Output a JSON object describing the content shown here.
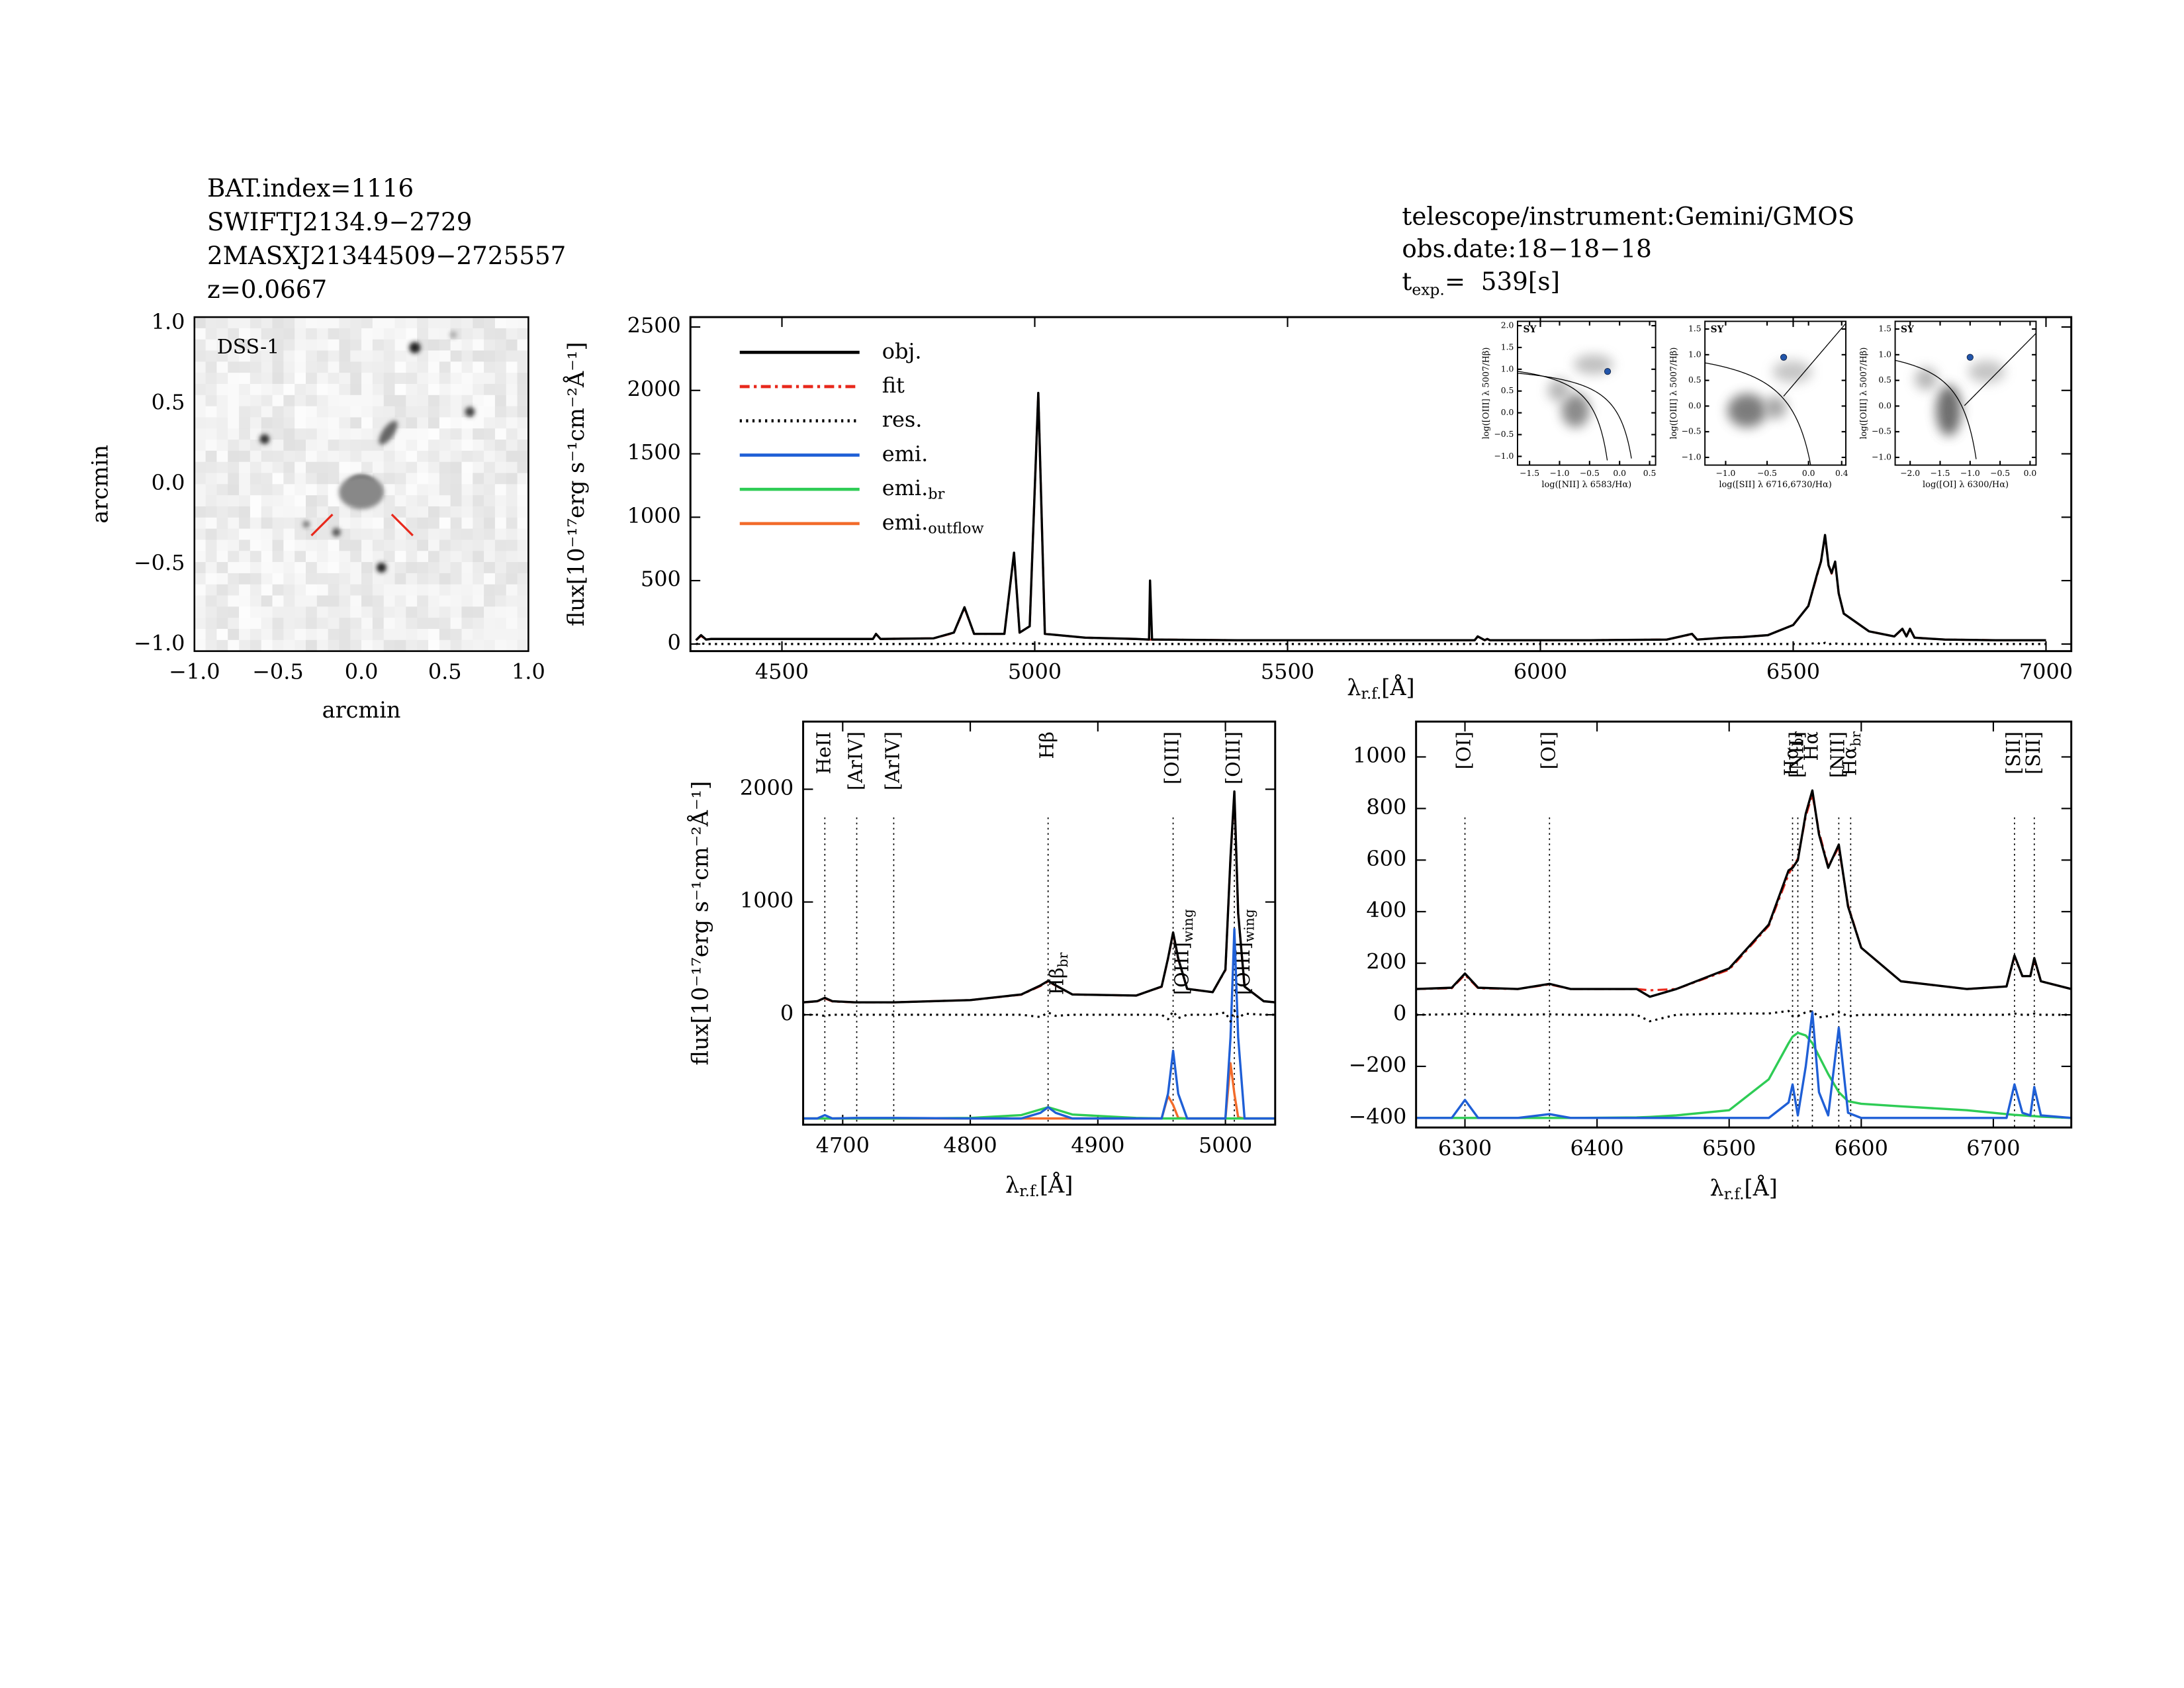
{
  "header": {
    "lines": [
      "BAT.index=1116",
      "SWIFTJ2134.9−2729",
      "2MASXJ21344509−2725557",
      "z=0.0667"
    ],
    "instrument": "telescope/instrument:Gemini/GMOS",
    "date": "obs.date:18−18−18",
    "texp": [
      "t",
      "exp.",
      "=  539[s]"
    ]
  },
  "chart_data": [
    {
      "type": "image",
      "label": "DSS-1",
      "xlabel": "arcmin",
      "ylabel": "arcmin",
      "xlim": [
        -1.0,
        1.0
      ],
      "ylim": [
        -1.04,
        1.04
      ],
      "xticks": [
        {
          "value": -1.0,
          "label": "−1.0"
        },
        {
          "value": -0.5,
          "label": "−0.5"
        },
        {
          "value": 0,
          "label": "0.0"
        },
        0.5,
        {
          "value": 1.0,
          "label": "1.0"
        }
      ],
      "yticks": [
        {
          "value": -1.0,
          "label": "−1.0"
        },
        {
          "value": -0.5,
          "label": "−0.5"
        },
        {
          "value": 0,
          "label": "0.0"
        },
        0.5,
        {
          "value": 1.0,
          "label": "1.0"
        }
      ]
    },
    {
      "type": "line",
      "xlabel": [
        "λ",
        "r.f.",
        "[Å]"
      ],
      "ylabel": "flux[10⁻¹⁷erg s⁻¹cm⁻²Å⁻¹]",
      "xlim": [
        4319,
        7050
      ],
      "ylim": [
        -56,
        2578
      ],
      "xticks": [
        4500,
        5000,
        5500,
        6000,
        6500,
        7000
      ],
      "yticks": [
        0,
        500,
        1000,
        1500,
        2000,
        2500
      ],
      "x": [
        4330,
        4340,
        4350,
        4360,
        4400,
        4500,
        4600,
        4680,
        4686,
        4695,
        4800,
        4840,
        4861,
        4880,
        4940,
        4959,
        4970,
        4990,
        5007,
        5020,
        5100,
        5200,
        5226,
        5228,
        5232,
        5240,
        5400,
        5600,
        5800,
        5870,
        5876,
        5890,
        5895,
        5900,
        6000,
        6100,
        6250,
        6300,
        6310,
        6364,
        6400,
        6450,
        6500,
        6530,
        6548,
        6555,
        6563,
        6570,
        6576,
        6583,
        6590,
        6600,
        6650,
        6700,
        6716,
        6724,
        6731,
        6740,
        6800,
        6900,
        7000
      ],
      "series": [
        {
          "name": "obj.",
          "color": "#000000",
          "dash": "solid",
          "values": [
            30,
            70,
            35,
            40,
            40,
            40,
            40,
            40,
            80,
            40,
            45,
            90,
            290,
            80,
            80,
            720,
            90,
            140,
            1980,
            80,
            50,
            40,
            35,
            500,
            35,
            35,
            30,
            30,
            30,
            30,
            60,
            30,
            40,
            30,
            30,
            30,
            35,
            80,
            35,
            50,
            55,
            70,
            150,
            300,
            560,
            650,
            860,
            620,
            560,
            650,
            400,
            240,
            100,
            60,
            120,
            60,
            120,
            50,
            35,
            30,
            30
          ]
        },
        {
          "name": "fit",
          "color": "#e8291c",
          "dash": "dashdot",
          "values": [
            30,
            65,
            35,
            40,
            40,
            40,
            40,
            40,
            78,
            40,
            45,
            88,
            285,
            80,
            80,
            715,
            90,
            140,
            1975,
            80,
            50,
            40,
            35,
            35,
            35,
            35,
            30,
            30,
            30,
            30,
            58,
            30,
            40,
            30,
            30,
            30,
            35,
            78,
            35,
            50,
            55,
            70,
            150,
            300,
            550,
            655,
            850,
            625,
            555,
            645,
            400,
            240,
            100,
            60,
            118,
            60,
            118,
            50,
            35,
            30,
            30
          ]
        },
        {
          "name": "res.",
          "color": "#000000",
          "dash": "dotted",
          "values": [
            0,
            5,
            0,
            0,
            0,
            0,
            0,
            0,
            2,
            0,
            0,
            2,
            5,
            0,
            0,
            5,
            0,
            0,
            5,
            0,
            0,
            0,
            0,
            0,
            0,
            0,
            0,
            0,
            0,
            0,
            2,
            0,
            0,
            0,
            0,
            0,
            0,
            2,
            0,
            0,
            0,
            0,
            0,
            0,
            10,
            -5,
            10,
            -5,
            5,
            5,
            0,
            0,
            0,
            0,
            2,
            0,
            2,
            0,
            0,
            0,
            0
          ]
        }
      ],
      "legend_extra": [
        {
          "name": "emi.",
          "color": "#1f5fd6",
          "dash": "solid"
        },
        {
          "name": "emi.",
          "sub": "br",
          "color": "#2ecc55",
          "dash": "solid"
        },
        {
          "name": "emi.",
          "sub": "outflow",
          "color": "#f26b2a",
          "dash": "solid"
        }
      ]
    },
    {
      "type": "line",
      "xlabel": [
        "λ",
        "r.f.",
        "[Å]"
      ],
      "ylabel": "flux[10⁻¹⁷erg s⁻¹cm⁻²Å⁻¹]",
      "xlim": [
        4669,
        5039
      ],
      "ylim": [
        -975,
        2600
      ],
      "xticks": [
        4700,
        4800,
        4900,
        5000
      ],
      "yticks": [
        0,
        1000,
        2000
      ],
      "x": [
        4669,
        4680,
        4686,
        4692,
        4710,
        4740,
        4800,
        4840,
        4855,
        4861,
        4867,
        4880,
        4930,
        4950,
        4955,
        4959,
        4963,
        4970,
        4990,
        5000,
        5004,
        5007,
        5010,
        5015,
        5030,
        5039
      ],
      "series": [
        {
          "color": "#000000",
          "dash": "solid",
          "values": [
            110,
            120,
            150,
            120,
            110,
            110,
            130,
            180,
            260,
            300,
            260,
            180,
            170,
            250,
            500,
            730,
            500,
            230,
            200,
            400,
            1400,
            1980,
            900,
            250,
            120,
            110
          ]
        },
        {
          "color": "#e8291c",
          "dash": "dashdot",
          "values": [
            110,
            118,
            145,
            118,
            110,
            110,
            130,
            178,
            255,
            295,
            258,
            180,
            170,
            248,
            495,
            720,
            495,
            230,
            200,
            395,
            1390,
            1960,
            895,
            250,
            120,
            110
          ]
        },
        {
          "color": "#000000",
          "dash": "dotted",
          "values": [
            0,
            0,
            -10,
            0,
            0,
            0,
            0,
            0,
            -20,
            20,
            -10,
            0,
            0,
            0,
            -40,
            30,
            -30,
            0,
            0,
            20,
            -60,
            40,
            -30,
            10,
            0,
            0
          ]
        },
        {
          "color": "#1f5fd6",
          "dash": "solid",
          "values": [
            -920,
            -920,
            -890,
            -920,
            -915,
            -915,
            -920,
            -920,
            -870,
            -820,
            -870,
            -920,
            -920,
            -920,
            -700,
            -320,
            -700,
            -920,
            -920,
            -920,
            -200,
            760,
            -200,
            -920,
            -920,
            -920
          ]
        },
        {
          "color": "#2ecc55",
          "dash": "solid",
          "values": [
            -920,
            -920,
            -920,
            -920,
            -920,
            -920,
            -915,
            -890,
            -840,
            -820,
            -840,
            -885,
            -915,
            -920,
            -920,
            -920,
            -920,
            -920,
            -920,
            -920,
            -920,
            -920,
            -920,
            -920,
            -920,
            -920
          ]
        },
        {
          "color": "#f26b2a",
          "dash": "solid",
          "values": [
            -920,
            -920,
            -920,
            -920,
            -920,
            -920,
            -920,
            -920,
            -920,
            -920,
            -920,
            -920,
            -920,
            -920,
            -720,
            -800,
            -915,
            -920,
            -920,
            -920,
            -430,
            -700,
            -910,
            -920,
            -920,
            -920
          ]
        }
      ],
      "lines": [
        {
          "x": 4686,
          "text": "HeII"
        },
        {
          "x": 4711,
          "text": "[ArIV]"
        },
        {
          "x": 4740,
          "text": "[ArIV]"
        },
        {
          "x": 4861,
          "text": "Hβ"
        },
        {
          "x": 4959,
          "text": "[OIII]"
        },
        {
          "x": 5007,
          "text": "[OIII]"
        }
      ],
      "low_labels": [
        {
          "x": 4861,
          "text": "Hβ",
          "sub": "br"
        },
        {
          "x": 4959,
          "text": "[OIII]",
          "sub": "wing"
        },
        {
          "x": 5007,
          "text": "[OIII]",
          "sub": "wing"
        }
      ]
    },
    {
      "type": "line",
      "xlabel": [
        "λ",
        "r.f.",
        "[Å]"
      ],
      "xlim": [
        6263,
        6759
      ],
      "ylim": [
        -437,
        1137
      ],
      "xticks": [
        6300,
        6400,
        6500,
        6600,
        6700
      ],
      "yticks": [
        {
          "value": -400,
          "label": "−400"
        },
        {
          "value": -200,
          "label": "−200"
        },
        0,
        200,
        400,
        600,
        800,
        1000
      ],
      "x": [
        6263,
        6290,
        6300,
        6310,
        6340,
        6364,
        6380,
        6430,
        6440,
        6460,
        6500,
        6530,
        6545,
        6548,
        6552,
        6558,
        6563,
        6568,
        6575,
        6583,
        6590,
        6600,
        6630,
        6680,
        6710,
        6716,
        6722,
        6728,
        6731,
        6736,
        6759
      ],
      "series": [
        {
          "color": "#000000",
          "dash": "solid",
          "values": [
            100,
            105,
            160,
            105,
            100,
            120,
            100,
            100,
            70,
            100,
            180,
            350,
            560,
            570,
            600,
            780,
            870,
            700,
            570,
            660,
            420,
            260,
            130,
            100,
            110,
            230,
            150,
            150,
            220,
            130,
            100
          ]
        },
        {
          "color": "#e8291c",
          "dash": "dashdot",
          "values": [
            100,
            103,
            155,
            103,
            100,
            118,
            100,
            100,
            95,
            100,
            175,
            345,
            545,
            575,
            605,
            770,
            855,
            710,
            575,
            650,
            425,
            260,
            130,
            100,
            110,
            225,
            150,
            150,
            215,
            130,
            100
          ]
        },
        {
          "color": "#000000",
          "dash": "dotted",
          "values": [
            0,
            2,
            5,
            2,
            0,
            2,
            0,
            0,
            -25,
            0,
            5,
            5,
            15,
            -5,
            -5,
            10,
            15,
            -10,
            -5,
            10,
            -5,
            0,
            0,
            0,
            0,
            5,
            0,
            0,
            5,
            0,
            0
          ]
        },
        {
          "color": "#1f5fd6",
          "dash": "solid",
          "values": [
            -400,
            -400,
            -330,
            -400,
            -400,
            -385,
            -400,
            -400,
            -400,
            -400,
            -400,
            -400,
            -340,
            -270,
            -390,
            -200,
            10,
            -300,
            -390,
            -50,
            -380,
            -400,
            -400,
            -400,
            -400,
            -270,
            -380,
            -390,
            -280,
            -390,
            -400
          ]
        },
        {
          "color": "#2ecc55",
          "dash": "solid",
          "values": [
            -400,
            -400,
            -400,
            -400,
            -400,
            -400,
            -400,
            -398,
            -396,
            -390,
            -370,
            -250,
            -110,
            -85,
            -70,
            -80,
            -110,
            -160,
            -230,
            -300,
            -335,
            -345,
            -355,
            -370,
            -385,
            -388,
            -390,
            -392,
            -393,
            -395,
            -400
          ]
        }
      ],
      "lines": [
        {
          "x": 6300,
          "text": "[OI]"
        },
        {
          "x": 6364,
          "text": "[OI]"
        },
        {
          "x": 6548,
          "text": "Hα",
          "sub": "br"
        },
        {
          "x": 6552,
          "text": "[NII]"
        },
        {
          "x": 6563,
          "text": "Hα"
        },
        {
          "x": 6583,
          "text": "[NII]"
        },
        {
          "x": 6592,
          "text": "Hα",
          "sub": "br"
        },
        {
          "x": 6716,
          "text": "[SII]"
        },
        {
          "x": 6731,
          "text": "[SII]"
        }
      ]
    },
    {
      "type": "scatter",
      "label": "SY",
      "xlabel": "log([NII] λ 6583/Hα)",
      "ylabel": "log([OIII] λ 5007/Hβ)",
      "xlim": [
        -1.7,
        0.6
      ],
      "ylim": [
        -1.2,
        2.1
      ],
      "xticks": [
        {
          "value": -1.5,
          "label": "−1.5"
        },
        {
          "value": -1.0,
          "label": "−1.0"
        },
        {
          "value": -0.5,
          "label": "−0.5"
        },
        {
          "value": 0,
          "label": "0.0"
        },
        0.5
      ],
      "yticks": [
        {
          "value": -1.0,
          "label": "−1.0"
        },
        {
          "value": -0.5,
          "label": "−0.5"
        },
        {
          "value": 0,
          "label": "0.0"
        },
        0.5,
        {
          "value": 1.0,
          "label": "1.0"
        },
        1.5,
        {
          "value": 2.0,
          "label": "2.0"
        }
      ],
      "x": [
        -0.2
      ],
      "values": [
        0.95
      ],
      "color": "#2255aa"
    },
    {
      "type": "scatter",
      "label": "SY",
      "xlabel": "log([SII] λ 6716,6730/Hα)",
      "ylabel": "log([OIII] λ 5007/Hβ)",
      "xlim": [
        -1.25,
        0.45
      ],
      "ylim": [
        -1.15,
        1.65
      ],
      "xticks": [
        {
          "value": -1.0,
          "label": "−1.0"
        },
        {
          "value": -0.5,
          "label": "−0.5"
        },
        {
          "value": 0,
          "label": "0.0"
        },
        0.4
      ],
      "yticks": [
        {
          "value": -1.0,
          "label": "−1.0"
        },
        {
          "value": -0.5,
          "label": "−0.5"
        },
        {
          "value": 0,
          "label": "0.0"
        },
        0.5,
        {
          "value": 1.0,
          "label": "1.0"
        },
        1.5
      ],
      "x": [
        -0.3
      ],
      "values": [
        0.95
      ],
      "color": "#2255aa"
    },
    {
      "type": "scatter",
      "label": "SY",
      "xlabel": "log([OI] λ 6300/Hα)",
      "ylabel": "log([OIII] λ 5007/Hβ)",
      "xlim": [
        -2.25,
        0.1
      ],
      "ylim": [
        -1.15,
        1.65
      ],
      "xticks": [
        {
          "value": -2.0,
          "label": "−2.0"
        },
        {
          "value": -1.5,
          "label": "−1.5"
        },
        {
          "value": -1.0,
          "label": "−1.0"
        },
        {
          "value": -0.5,
          "label": "−0.5"
        },
        {
          "value": 0,
          "label": "0.0"
        }
      ],
      "yticks": [
        {
          "value": -1.0,
          "label": "−1.0"
        },
        {
          "value": -0.5,
          "label": "−0.5"
        },
        {
          "value": 0,
          "label": "0.0"
        },
        0.5,
        {
          "value": 1.0,
          "label": "1.0"
        },
        1.5
      ],
      "x": [
        -1.0
      ],
      "values": [
        0.95
      ],
      "color": "#2255aa"
    }
  ]
}
